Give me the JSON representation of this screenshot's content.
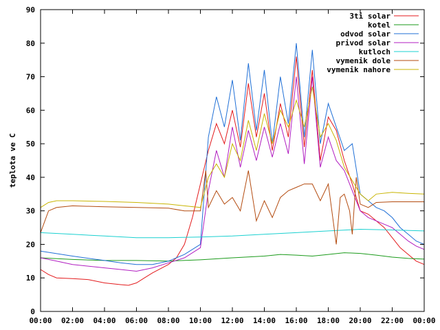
{
  "chart_data": {
    "type": "line",
    "title": "",
    "xlabel": "",
    "ylabel": "teplota ve C",
    "xlim": [
      "00:00",
      "00:00"
    ],
    "ylim": [
      0,
      90
    ],
    "grid": false,
    "legend_position": "top-right",
    "x_ticks": [
      "00:00",
      "02:00",
      "04:00",
      "06:00",
      "08:00",
      "10:00",
      "12:00",
      "14:00",
      "16:00",
      "18:00",
      "20:00",
      "22:00",
      "00:00"
    ],
    "y_ticks": [
      "0",
      "10",
      "20",
      "30",
      "40",
      "50",
      "60",
      "70",
      "80",
      "90"
    ],
    "series": [
      {
        "name": "3ti solar",
        "color": "#e31a1c",
        "x": [
          "00:00",
          "00:30",
          "01:00",
          "02:00",
          "03:00",
          "04:00",
          "05:00",
          "05:30",
          "06:00",
          "06:30",
          "07:00",
          "08:00",
          "08:30",
          "09:00",
          "09:30",
          "10:00",
          "10:30",
          "11:00",
          "11:30",
          "12:00",
          "12:30",
          "13:00",
          "13:30",
          "14:00",
          "14:30",
          "15:00",
          "15:30",
          "16:00",
          "16:30",
          "17:00",
          "17:30",
          "18:00",
          "18:30",
          "19:00",
          "19:30",
          "20:00",
          "20:30",
          "21:00",
          "21:30",
          "22:00",
          "22:30",
          "23:00",
          "23:30",
          "23:59"
        ],
        "values": [
          12.5,
          11,
          10,
          9.8,
          9.5,
          8.5,
          8,
          7.8,
          8.5,
          10,
          11.5,
          14,
          16,
          20,
          28,
          38,
          48,
          56,
          50,
          60,
          49,
          68,
          52,
          65,
          48,
          62,
          52,
          76,
          49,
          72,
          45,
          58,
          54,
          45,
          38,
          30,
          29,
          27,
          25,
          22,
          19,
          17,
          15,
          14
        ]
      },
      {
        "name": "kotel",
        "color": "#1a9a1a",
        "x": [
          "00:00",
          "02:00",
          "04:00",
          "06:00",
          "08:00",
          "10:00",
          "12:00",
          "14:00",
          "15:00",
          "16:00",
          "17:00",
          "18:00",
          "19:00",
          "20:00",
          "21:00",
          "22:00",
          "23:00",
          "23:59"
        ],
        "values": [
          16,
          15.5,
          15.2,
          15.2,
          15,
          15.4,
          16,
          16.5,
          17,
          16.8,
          16.5,
          17,
          17.5,
          17.3,
          16.8,
          16.2,
          15.8,
          15.6
        ]
      },
      {
        "name": "odvod solar",
        "color": "#1f6fd6",
        "x": [
          "00:00",
          "02:00",
          "04:00",
          "05:00",
          "06:00",
          "07:00",
          "08:00",
          "09:00",
          "10:00",
          "10:30",
          "11:00",
          "11:30",
          "12:00",
          "12:30",
          "13:00",
          "13:30",
          "14:00",
          "14:30",
          "15:00",
          "15:30",
          "16:00",
          "16:30",
          "17:00",
          "17:30",
          "18:00",
          "18:30",
          "19:00",
          "19:30",
          "20:00",
          "20:30",
          "21:00",
          "21:30",
          "22:00",
          "22:30",
          "23:00",
          "23:30",
          "23:59"
        ],
        "values": [
          18,
          16.5,
          15.2,
          14.5,
          14,
          14,
          15,
          17,
          20,
          52,
          64,
          55,
          69,
          51,
          74,
          54,
          72,
          50,
          70,
          56,
          80,
          52,
          78,
          50,
          62,
          55,
          48,
          50,
          35,
          33,
          31,
          30,
          28,
          25,
          23,
          21,
          20
        ]
      },
      {
        "name": "privod solar",
        "color": "#b01cc0",
        "x": [
          "00:00",
          "01:00",
          "02:00",
          "04:00",
          "05:00",
          "06:00",
          "07:00",
          "08:00",
          "09:00",
          "10:00",
          "10:30",
          "11:00",
          "11:30",
          "12:00",
          "12:30",
          "13:00",
          "13:30",
          "14:00",
          "14:30",
          "15:00",
          "15:30",
          "16:00",
          "16:30",
          "17:00",
          "17:30",
          "18:00",
          "18:30",
          "19:00",
          "19:30",
          "20:00",
          "20:30",
          "21:00",
          "21:30",
          "22:00",
          "22:30",
          "23:00",
          "23:30",
          "23:59"
        ],
        "values": [
          16,
          15,
          14,
          13,
          12.5,
          12,
          13,
          14.5,
          16,
          19,
          36,
          48,
          40,
          55,
          43,
          54,
          45,
          55,
          46,
          56,
          47,
          70,
          44,
          70,
          43,
          52,
          45,
          42,
          36,
          30,
          28,
          27,
          26,
          25,
          23,
          21,
          19.5,
          18.5
        ]
      },
      {
        "name": "kutloch",
        "color": "#19d0d0",
        "x": [
          "00:00",
          "02:00",
          "04:00",
          "06:00",
          "08:00",
          "10:00",
          "12:00",
          "14:00",
          "16:00",
          "18:00",
          "20:00",
          "22:00",
          "23:59"
        ],
        "values": [
          23.5,
          23,
          22.5,
          22,
          22,
          22.2,
          22.5,
          23,
          23.5,
          24,
          24.5,
          24.3,
          24
        ]
      },
      {
        "name": "vymenik dole",
        "color": "#b34a0e",
        "x": [
          "00:00",
          "00:30",
          "01:00",
          "02:00",
          "04:00",
          "06:00",
          "08:00",
          "09:00",
          "10:00",
          "10:20",
          "10:30",
          "11:00",
          "11:30",
          "12:00",
          "12:30",
          "13:00",
          "13:30",
          "14:00",
          "14:30",
          "15:00",
          "15:30",
          "16:00",
          "16:30",
          "17:00",
          "17:30",
          "18:00",
          "18:20",
          "18:30",
          "18:45",
          "19:00",
          "19:20",
          "19:30",
          "19:45",
          "20:00",
          "20:30",
          "21:00",
          "22:00",
          "23:00",
          "23:59"
        ],
        "values": [
          23.5,
          30,
          31,
          31.5,
          31.2,
          31,
          30.8,
          30,
          30,
          42,
          31,
          36,
          32,
          34,
          30,
          42,
          27,
          33,
          28,
          34,
          36,
          37,
          38,
          38,
          33,
          38,
          26,
          20,
          34,
          35,
          30,
          23,
          40,
          32,
          31,
          32.5,
          32.7,
          32.7,
          32.7
        ]
      },
      {
        "name": "vymenik nahore",
        "color": "#c8b400",
        "x": [
          "00:00",
          "00:30",
          "01:00",
          "02:00",
          "04:00",
          "06:00",
          "08:00",
          "09:00",
          "10:00",
          "10:30",
          "11:00",
          "11:30",
          "12:00",
          "12:30",
          "13:00",
          "13:30",
          "14:00",
          "14:30",
          "15:00",
          "15:30",
          "16:00",
          "16:30",
          "17:00",
          "17:30",
          "18:00",
          "18:30",
          "19:00",
          "19:30",
          "20:00",
          "20:30",
          "21:00",
          "22:00",
          "23:00",
          "23:59"
        ],
        "values": [
          31,
          32.5,
          33,
          33,
          32.8,
          32.5,
          32,
          31.5,
          31,
          40,
          44,
          40,
          50,
          45,
          57,
          48,
          59,
          50,
          60,
          55,
          63,
          55,
          67,
          52,
          56,
          51,
          43,
          39,
          35,
          33,
          35,
          35.5,
          35.2,
          35
        ]
      }
    ]
  }
}
